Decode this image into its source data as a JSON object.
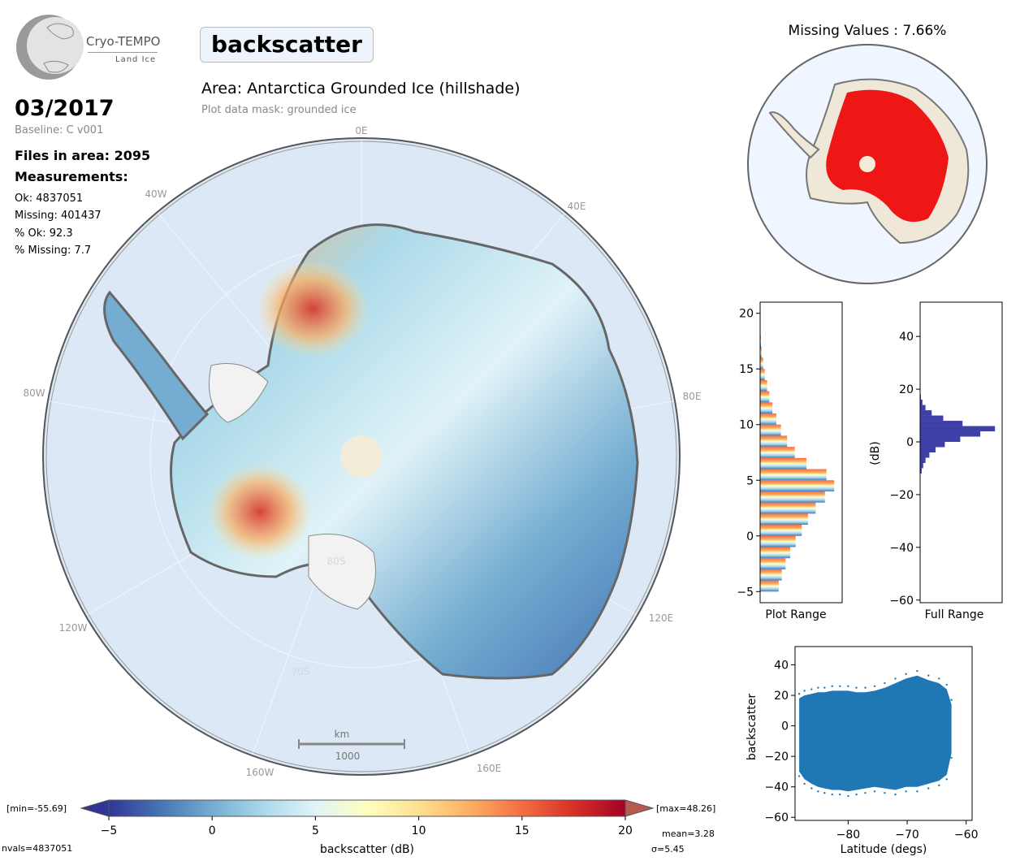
{
  "header": {
    "logo_title": "Cryo-TEMPO",
    "logo_subtitle": "Land Ice",
    "parameter": "backscatter",
    "area": "Area: Antarctica Grounded Ice (hillshade)",
    "mask": "Plot data mask: grounded ice"
  },
  "info": {
    "date": "03/2017",
    "baseline": "Baseline: C v001",
    "files": "Files in area: 2095",
    "measurements_label": "Measurements:",
    "ok": "Ok: 4837051",
    "missing": "Missing: 401437",
    "pct_ok": "% Ok: 92.3",
    "pct_missing": "% Missing: 7.7"
  },
  "colorbar": {
    "min_label": "[min=-55.69]",
    "max_label": "[max=48.26]",
    "nvals": "nvals=4837051",
    "mean": "mean=3.28",
    "sigma": "σ=5.45",
    "colors": [
      "#313695",
      "#4575b4",
      "#74add1",
      "#abd9e9",
      "#e0f3f8",
      "#ffffbf",
      "#fee090",
      "#fdae61",
      "#f46d43",
      "#d73027",
      "#a50026"
    ]
  },
  "map": {
    "lon_labels": [
      "0E",
      "40E",
      "80E",
      "120E",
      "160E",
      "160W",
      "120W",
      "80W",
      "40W"
    ],
    "lat_labels": [
      "80S",
      "70S"
    ],
    "scale_unit": "km",
    "scale_value": "1000"
  },
  "missing_map": {
    "title": "Missing Values : 7.66%",
    "missing_color": "#ee0000",
    "ok_color": "#efe8d8"
  },
  "chart_data": [
    {
      "type": "heatmap",
      "xlabel": "backscatter (dB)",
      "colorbar_ticks": [
        -5,
        0,
        5,
        10,
        15,
        20
      ],
      "colorbar_range": [
        -5,
        20
      ]
    },
    {
      "type": "bar",
      "orientation": "horizontal",
      "xlabel": "Plot Range",
      "ylim": [
        -6,
        21
      ],
      "yticks": [
        -5,
        0,
        5,
        10,
        15,
        20
      ],
      "bins": [
        -5,
        -4,
        -3,
        -2,
        -1,
        0,
        1,
        2,
        3,
        4,
        5,
        6,
        7,
        8,
        9,
        10,
        11,
        12,
        13,
        14,
        15,
        16,
        17
      ],
      "counts": [
        0.24,
        0.28,
        0.33,
        0.39,
        0.46,
        0.54,
        0.62,
        0.72,
        0.84,
        0.96,
        0.86,
        0.6,
        0.45,
        0.35,
        0.27,
        0.21,
        0.16,
        0.12,
        0.09,
        0.06,
        0.04,
        0.02,
        0.01
      ]
    },
    {
      "type": "bar",
      "orientation": "horizontal",
      "xlabel": "Full Range",
      "ylabel": "(dB)",
      "ylim": [
        -61,
        53
      ],
      "yticks": [
        -60,
        -40,
        -20,
        0,
        20,
        40
      ],
      "bins": [
        -12,
        -10,
        -8,
        -6,
        -4,
        -2,
        0,
        2,
        4,
        6,
        8,
        10,
        12,
        14,
        16
      ],
      "counts": [
        0.02,
        0.04,
        0.07,
        0.12,
        0.2,
        0.32,
        0.52,
        0.78,
        0.97,
        0.55,
        0.3,
        0.15,
        0.07,
        0.03,
        0.01
      ]
    },
    {
      "type": "scatter",
      "xlabel": "Latitude (degs)",
      "ylabel": "backscatter",
      "xlim": [
        -89,
        -59
      ],
      "ylim": [
        -62,
        52
      ],
      "xticks": [
        -80,
        -70,
        -60
      ],
      "yticks": [
        -60,
        -40,
        -20,
        0,
        20,
        40
      ],
      "color": "#1f77b4",
      "x": [
        -88.3,
        -87.4,
        -86.2,
        -85.1,
        -84.0,
        -82.7,
        -81.4,
        -80.0,
        -78.6,
        -77.1,
        -75.5,
        -73.8,
        -72.0,
        -70.2,
        -68.3,
        -66.4,
        -64.6,
        -63.3,
        -62.5
      ],
      "y_upper": [
        18,
        20,
        21,
        22,
        22,
        23,
        23,
        23,
        22,
        22,
        23,
        25,
        28,
        31,
        33,
        30,
        28,
        24,
        14
      ],
      "y_lower": [
        -30,
        -35,
        -38,
        -40,
        -41,
        -42,
        -42,
        -43,
        -42,
        -41,
        -40,
        -41,
        -42,
        -40,
        -40,
        -38,
        -36,
        -32,
        -18
      ]
    }
  ]
}
